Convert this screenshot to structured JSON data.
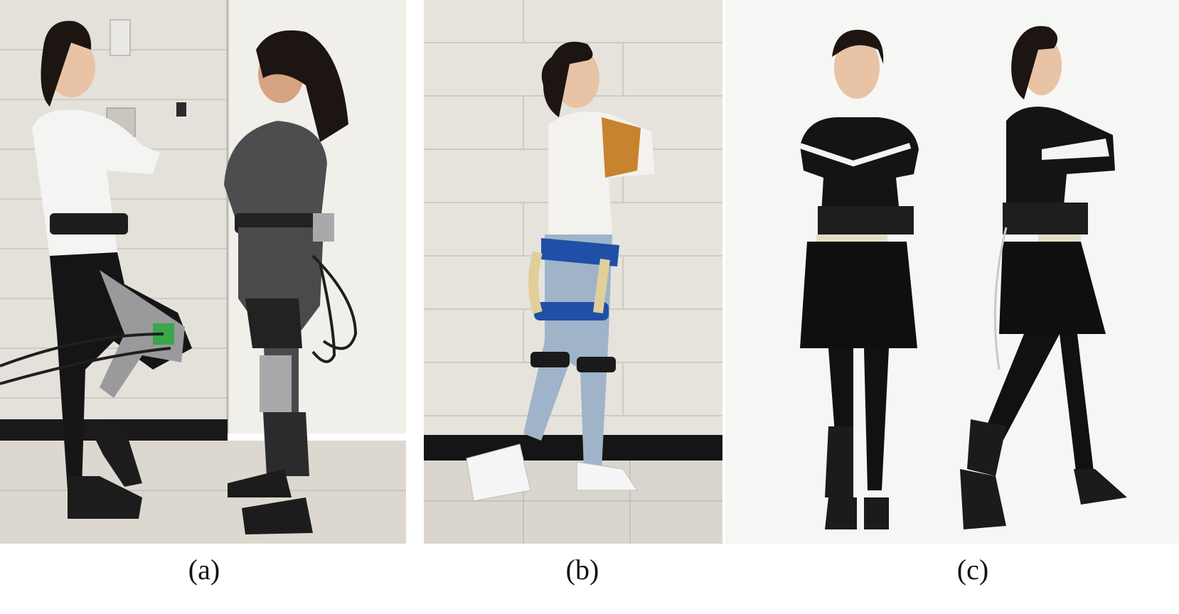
{
  "figure": {
    "panels": [
      {
        "id": "a",
        "caption": "(a)"
      },
      {
        "id": "b",
        "caption": "(b)"
      },
      {
        "id": "c",
        "caption": "(c)"
      }
    ]
  },
  "colors": {
    "wall": "#e4e1da",
    "floor": "#ddd8cf",
    "baseboard": "#1a1a1a",
    "backdrop_c": "#f6f6f4",
    "skin": "#e8c3a6",
    "hair": "#1c1512",
    "white_hoodie": "#f4f4f2",
    "gray_sweater": "#4d4d50",
    "black_clothing": "#141414",
    "jeans": "#9fb4c8",
    "mustard_stripe": "#c8832e",
    "blue_strap": "#1f4fa6",
    "tan_tube": "#e0cf9a",
    "metal": "#a9a9ab",
    "green_board": "#3aa54a"
  }
}
